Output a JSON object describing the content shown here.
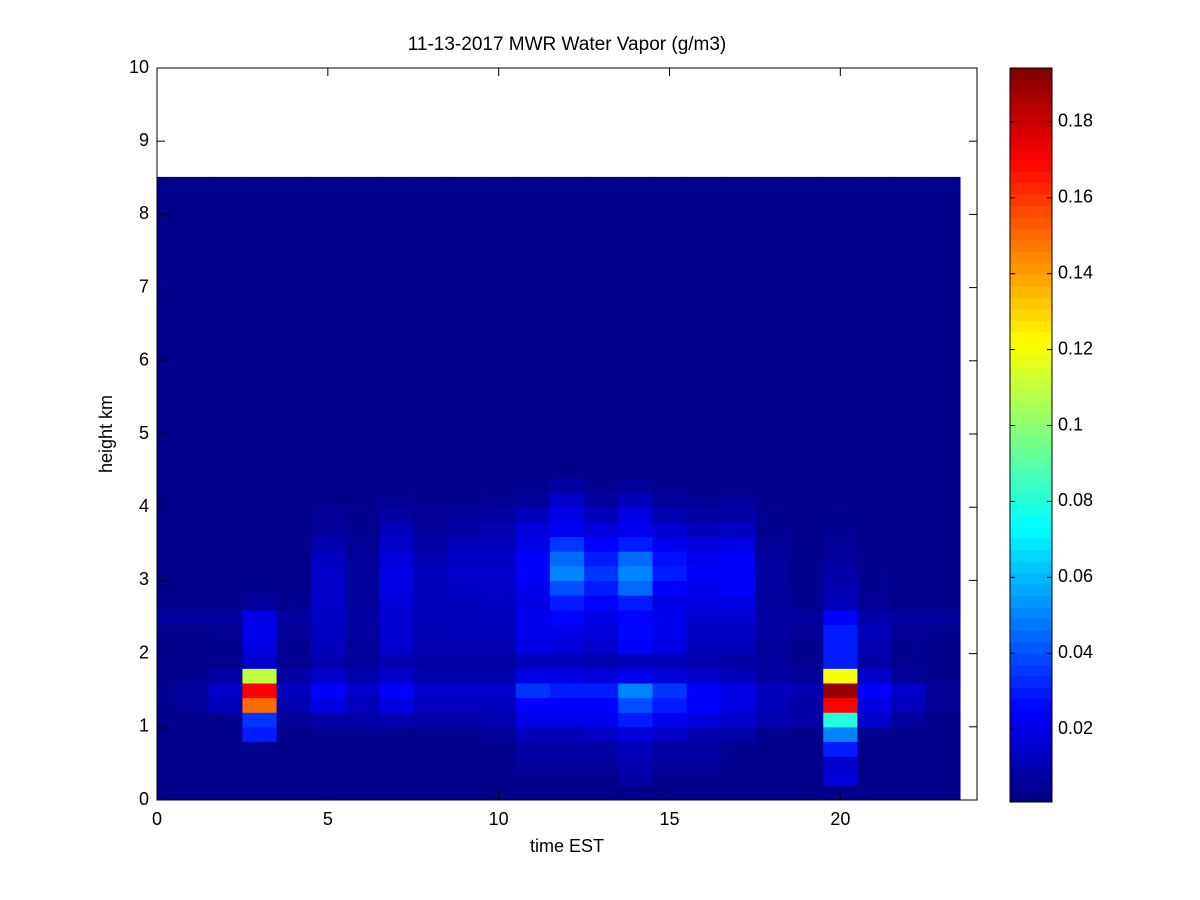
{
  "chart_data": {
    "type": "heatmap",
    "title": "11-13-2017 MWR Water Vapor (g/m3)",
    "xlabel": "time EST",
    "ylabel": "height km",
    "colormap": "jet",
    "xlim": [
      0,
      24
    ],
    "ylim": [
      0,
      10
    ],
    "xticks": [
      0,
      5,
      10,
      15,
      20
    ],
    "yticks": [
      0,
      1,
      2,
      3,
      4,
      5,
      6,
      7,
      8,
      9,
      10
    ],
    "clim": [
      0.0008,
      0.1942
    ],
    "cticks": [
      0.02,
      0.04,
      0.06,
      0.08,
      0.1,
      0.12,
      0.14,
      0.16,
      0.18
    ],
    "x": [
      0,
      1,
      2,
      3,
      4,
      5,
      6,
      7,
      8,
      9,
      10,
      11,
      12,
      13,
      14,
      15,
      16,
      17,
      18,
      19,
      20,
      21,
      22,
      23
    ],
    "y": [
      0.1,
      0.3,
      0.5,
      0.7,
      0.9,
      1.1,
      1.3,
      1.5,
      1.7,
      1.9,
      2.1,
      2.3,
      2.5,
      2.7,
      2.9,
      3.1,
      3.3,
      3.5,
      3.7,
      3.9,
      4.1,
      4.3,
      4.5,
      7.175
    ],
    "z": [
      [
        0.003,
        0.003,
        0.003,
        0.003,
        0.003,
        0.003,
        0.003,
        0.003,
        0.003,
        0.003,
        0.003,
        0.003,
        0.003,
        0.003,
        0.003,
        0.003,
        0.003,
        0.003,
        0.003,
        0.003,
        0.003,
        0.003,
        0.003,
        0.003
      ],
      [
        0.003,
        0.003,
        0.003,
        0.003,
        0.003,
        0.003,
        0.003,
        0.003,
        0.003,
        0.003,
        0.003,
        0.003,
        0.003,
        0.003,
        0.008,
        0.003,
        0.003,
        0.003,
        0.003,
        0.003,
        0.018,
        0.003,
        0.003,
        0.003
      ],
      [
        0.003,
        0.003,
        0.003,
        0.003,
        0.003,
        0.003,
        0.003,
        0.003,
        0.003,
        0.003,
        0.003,
        0.006,
        0.006,
        0.006,
        0.01,
        0.006,
        0.006,
        0.003,
        0.003,
        0.003,
        0.015,
        0.003,
        0.003,
        0.003
      ],
      [
        0.003,
        0.003,
        0.003,
        0.003,
        0.003,
        0.003,
        0.003,
        0.003,
        0.003,
        0.003,
        0.004,
        0.008,
        0.008,
        0.008,
        0.012,
        0.008,
        0.008,
        0.004,
        0.003,
        0.003,
        0.03,
        0.003,
        0.003,
        0.003
      ],
      [
        0.003,
        0.003,
        0.003,
        0.03,
        0.003,
        0.004,
        0.004,
        0.004,
        0.004,
        0.004,
        0.006,
        0.012,
        0.012,
        0.014,
        0.018,
        0.014,
        0.01,
        0.008,
        0.004,
        0.003,
        0.05,
        0.004,
        0.003,
        0.003
      ],
      [
        0.003,
        0.003,
        0.004,
        0.035,
        0.005,
        0.008,
        0.008,
        0.01,
        0.008,
        0.008,
        0.01,
        0.02,
        0.02,
        0.022,
        0.03,
        0.022,
        0.018,
        0.015,
        0.01,
        0.008,
        0.08,
        0.015,
        0.006,
        0.003
      ],
      [
        0.004,
        0.005,
        0.012,
        0.15,
        0.01,
        0.02,
        0.012,
        0.02,
        0.012,
        0.012,
        0.012,
        0.025,
        0.025,
        0.025,
        0.04,
        0.03,
        0.025,
        0.02,
        0.012,
        0.008,
        0.17,
        0.02,
        0.012,
        0.005
      ],
      [
        0.004,
        0.006,
        0.015,
        0.17,
        0.012,
        0.025,
        0.015,
        0.025,
        0.015,
        0.015,
        0.015,
        0.035,
        0.03,
        0.03,
        0.05,
        0.035,
        0.025,
        0.02,
        0.012,
        0.01,
        0.19,
        0.025,
        0.015,
        0.005
      ],
      [
        0.003,
        0.004,
        0.008,
        0.11,
        0.008,
        0.015,
        0.01,
        0.015,
        0.01,
        0.01,
        0.01,
        0.02,
        0.02,
        0.018,
        0.022,
        0.018,
        0.015,
        0.012,
        0.008,
        0.006,
        0.12,
        0.015,
        0.006,
        0.003
      ],
      [
        0.003,
        0.003,
        0.004,
        0.015,
        0.004,
        0.01,
        0.006,
        0.01,
        0.008,
        0.008,
        0.008,
        0.012,
        0.012,
        0.01,
        0.012,
        0.012,
        0.01,
        0.008,
        0.006,
        0.004,
        0.03,
        0.008,
        0.004,
        0.003
      ],
      [
        0.003,
        0.003,
        0.004,
        0.02,
        0.004,
        0.012,
        0.006,
        0.015,
        0.01,
        0.01,
        0.01,
        0.02,
        0.018,
        0.015,
        0.025,
        0.02,
        0.012,
        0.012,
        0.006,
        0.004,
        0.03,
        0.01,
        0.004,
        0.003
      ],
      [
        0.003,
        0.003,
        0.004,
        0.022,
        0.005,
        0.014,
        0.007,
        0.016,
        0.011,
        0.012,
        0.012,
        0.022,
        0.02,
        0.018,
        0.026,
        0.022,
        0.014,
        0.014,
        0.007,
        0.005,
        0.03,
        0.012,
        0.005,
        0.004
      ],
      [
        0.006,
        0.006,
        0.007,
        0.02,
        0.007,
        0.014,
        0.008,
        0.016,
        0.012,
        0.012,
        0.012,
        0.022,
        0.025,
        0.02,
        0.025,
        0.022,
        0.016,
        0.016,
        0.008,
        0.007,
        0.025,
        0.009,
        0.007,
        0.006
      ],
      [
        0.003,
        0.003,
        0.003,
        0.006,
        0.004,
        0.015,
        0.006,
        0.018,
        0.012,
        0.012,
        0.014,
        0.02,
        0.03,
        0.025,
        0.03,
        0.02,
        0.02,
        0.02,
        0.006,
        0.004,
        0.012,
        0.005,
        0.003,
        0.003
      ],
      [
        0.003,
        0.003,
        0.003,
        0.004,
        0.003,
        0.015,
        0.006,
        0.02,
        0.012,
        0.014,
        0.015,
        0.022,
        0.04,
        0.03,
        0.045,
        0.025,
        0.022,
        0.024,
        0.006,
        0.004,
        0.01,
        0.004,
        0.003,
        0.003
      ],
      [
        0.003,
        0.003,
        0.003,
        0.003,
        0.003,
        0.015,
        0.006,
        0.02,
        0.012,
        0.015,
        0.015,
        0.025,
        0.05,
        0.035,
        0.05,
        0.03,
        0.025,
        0.025,
        0.007,
        0.004,
        0.008,
        0.004,
        0.003,
        0.003
      ],
      [
        0.003,
        0.003,
        0.003,
        0.003,
        0.003,
        0.014,
        0.006,
        0.018,
        0.01,
        0.014,
        0.014,
        0.024,
        0.045,
        0.03,
        0.045,
        0.028,
        0.022,
        0.024,
        0.006,
        0.004,
        0.006,
        0.003,
        0.003,
        0.003
      ],
      [
        0.003,
        0.003,
        0.003,
        0.003,
        0.003,
        0.01,
        0.005,
        0.015,
        0.008,
        0.012,
        0.012,
        0.02,
        0.035,
        0.025,
        0.03,
        0.022,
        0.018,
        0.02,
        0.005,
        0.003,
        0.005,
        0.003,
        0.003,
        0.003
      ],
      [
        0.003,
        0.003,
        0.003,
        0.003,
        0.003,
        0.006,
        0.004,
        0.012,
        0.006,
        0.008,
        0.01,
        0.018,
        0.022,
        0.018,
        0.022,
        0.016,
        0.012,
        0.014,
        0.004,
        0.003,
        0.004,
        0.003,
        0.003,
        0.003
      ],
      [
        0.003,
        0.003,
        0.003,
        0.003,
        0.003,
        0.005,
        0.004,
        0.008,
        0.005,
        0.006,
        0.007,
        0.012,
        0.02,
        0.012,
        0.02,
        0.01,
        0.008,
        0.008,
        0.004,
        0.003,
        0.004,
        0.003,
        0.003,
        0.003
      ],
      [
        0.003,
        0.003,
        0.003,
        0.003,
        0.003,
        0.003,
        0.003,
        0.005,
        0.004,
        0.004,
        0.005,
        0.006,
        0.015,
        0.007,
        0.012,
        0.006,
        0.005,
        0.006,
        0.003,
        0.003,
        0.003,
        0.003,
        0.003,
        0.003
      ],
      [
        0.003,
        0.003,
        0.003,
        0.003,
        0.003,
        0.003,
        0.003,
        0.003,
        0.003,
        0.003,
        0.003,
        0.004,
        0.008,
        0.004,
        0.006,
        0.004,
        0.003,
        0.003,
        0.003,
        0.003,
        0.003,
        0.003,
        0.003,
        0.003
      ],
      [
        0.003,
        0.003,
        0.003,
        0.003,
        0.003,
        0.003,
        0.003,
        0.003,
        0.003,
        0.003,
        0.003,
        0.003,
        0.003,
        0.003,
        0.003,
        0.003,
        0.003,
        0.003,
        0.003,
        0.003,
        0.003,
        0.003,
        0.003,
        0.003
      ],
      [
        0.003,
        0.003,
        0.003,
        0.003,
        0.003,
        0.003,
        0.003,
        0.003,
        0.003,
        0.003,
        0.003,
        0.003,
        0.003,
        0.003,
        0.003,
        0.003,
        0.003,
        0.003,
        0.003,
        0.003,
        0.003,
        0.003,
        0.003,
        0.003
      ]
    ]
  }
}
